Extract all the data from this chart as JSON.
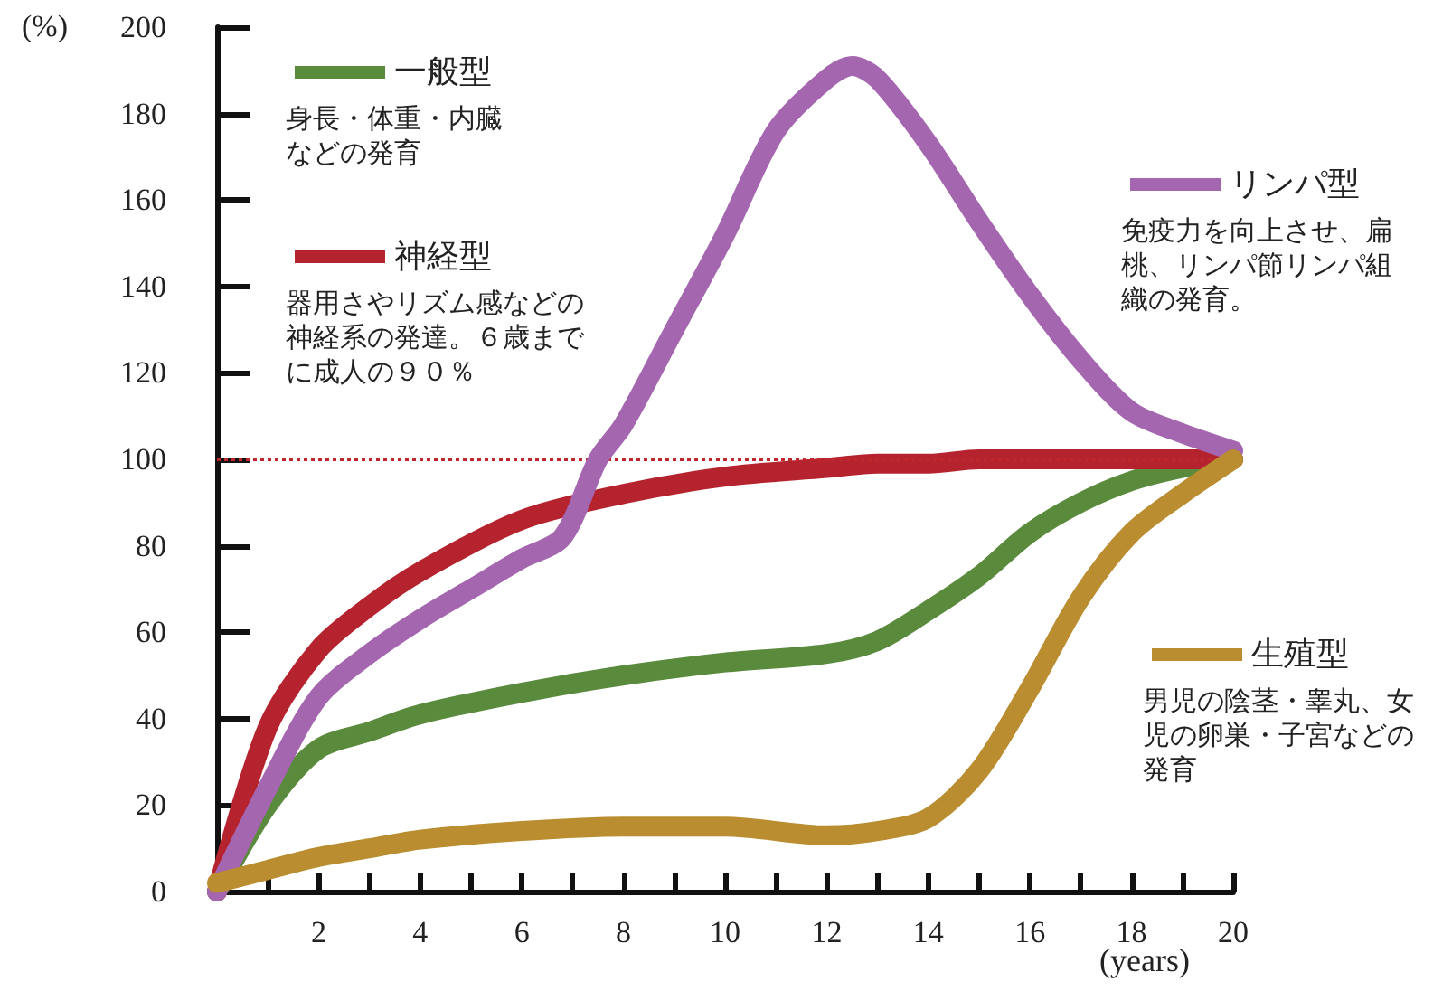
{
  "chart_data": {
    "type": "line",
    "ylabel": "(%)",
    "xlabel": "(years)",
    "x": [
      0,
      1,
      2,
      3,
      4,
      6,
      8,
      10,
      12,
      13,
      14,
      15,
      16,
      17,
      18,
      19,
      20
    ],
    "series": [
      {
        "name": "一般型",
        "color": "#5a8a3c",
        "values": [
          0,
          20,
          33,
          37,
          41,
          46,
          50,
          53,
          55,
          58,
          65,
          73,
          83,
          90,
          95,
          98,
          100
        ]
      },
      {
        "name": "神経型",
        "color": "#b5232e",
        "values": [
          0,
          38,
          56,
          66,
          74,
          86,
          92,
          96,
          98,
          99,
          99,
          100,
          100,
          100,
          100,
          100,
          100
        ]
      },
      {
        "name": "リンパ型",
        "color": "#a566b0",
        "x": [
          0,
          1,
          2,
          3,
          4,
          5,
          6,
          6.8,
          7.5,
          8,
          9,
          10,
          11,
          12,
          12.5,
          13,
          14,
          15,
          16,
          17,
          18,
          19,
          20
        ],
        "values": [
          0,
          24,
          45,
          55,
          63,
          70,
          77,
          82,
          100,
          108,
          130,
          152,
          176,
          188,
          191,
          188,
          173,
          155,
          138,
          123,
          111,
          106,
          102
        ]
      },
      {
        "name": "生殖型",
        "color": "#b98d30",
        "values": [
          2,
          5,
          8,
          10,
          12,
          14,
          15,
          15,
          13,
          14,
          17,
          28,
          47,
          68,
          83,
          92,
          100
        ]
      }
    ],
    "annotations": [
      "身長・体重・内臓などの発育",
      "器用さやリズム感などの神経系の発達。６歳までに成人の９０％",
      "免疫力を向上させ、扁桃、リンパ節リンパ組織の発育。",
      "男児の陰茎・睾丸、女児の卵巣・子宮などの発育"
    ],
    "xlim": [
      0,
      20
    ],
    "xticks": [
      {
        "value": 1,
        "label": null
      },
      2,
      {
        "value": 3,
        "label": null
      },
      4,
      {
        "value": 5,
        "label": null
      },
      6,
      {
        "value": 7,
        "label": null
      },
      8,
      {
        "value": 9,
        "label": null
      },
      10,
      {
        "value": 11,
        "label": null
      },
      12,
      {
        "value": 13,
        "label": null
      },
      14,
      {
        "value": 15,
        "label": null
      },
      16,
      {
        "value": 17,
        "label": null
      },
      18,
      {
        "value": 19,
        "label": null
      },
      20
    ],
    "ylim": [
      0,
      200
    ],
    "yticks": [
      0,
      20,
      40,
      60,
      80,
      100,
      120,
      140,
      160,
      180,
      200
    ],
    "ref_lines": [
      {
        "axis": "y",
        "value": 100,
        "color": "#c0272d",
        "line_style": "dotted"
      }
    ],
    "grid": false,
    "legend": "top right",
    "line_style": "solid"
  }
}
